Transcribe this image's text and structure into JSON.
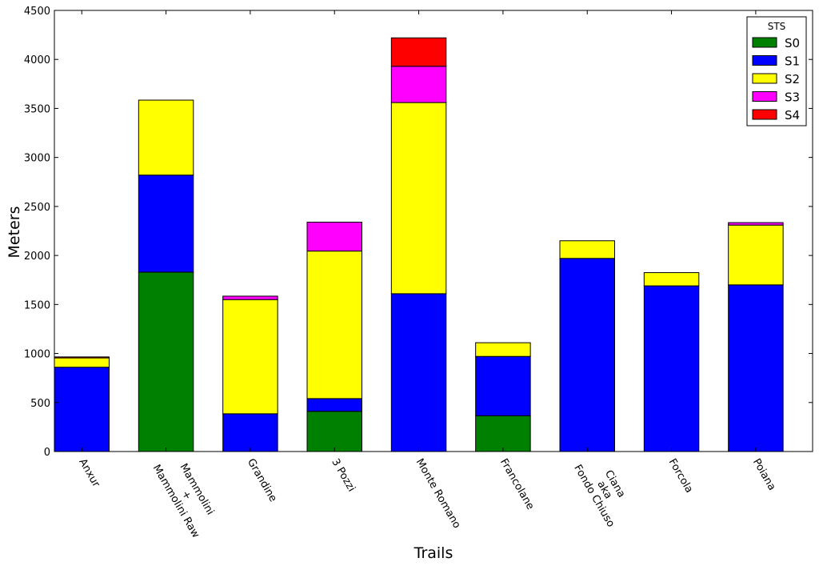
{
  "chart_data": {
    "type": "bar",
    "stacked": true,
    "xlabel": "Trails",
    "ylabel": "Meters",
    "ylim": [
      0,
      4500
    ],
    "yticks": [
      0,
      500,
      1000,
      1500,
      2000,
      2500,
      3000,
      3500,
      4000,
      4500
    ],
    "grid": false,
    "categories": [
      [
        "Anxur"
      ],
      [
        "Mammolini",
        "+",
        "Mammolini Raw"
      ],
      [
        "Grandine"
      ],
      [
        "3 Pozzi"
      ],
      [
        "Monte Romano"
      ],
      [
        "Francolane"
      ],
      [
        "Ciana",
        "aka",
        "Fondo Chiuso"
      ],
      [
        "Forcola"
      ],
      [
        "Poiana"
      ]
    ],
    "series": [
      {
        "name": "S0",
        "color": "#008000",
        "values": [
          0,
          1830,
          0,
          410,
          0,
          365,
          0,
          0,
          0
        ]
      },
      {
        "name": "S1",
        "color": "#0000ff",
        "values": [
          860,
          990,
          385,
          130,
          1610,
          605,
          1970,
          1690,
          1700
        ]
      },
      {
        "name": "S2",
        "color": "#ffff00",
        "values": [
          95,
          765,
          1165,
          1505,
          1950,
          140,
          180,
          135,
          610
        ]
      },
      {
        "name": "S3",
        "color": "#ff00ff",
        "values": [
          0,
          0,
          35,
          295,
          370,
          0,
          0,
          0,
          25
        ]
      },
      {
        "name": "S4",
        "color": "#ff0000",
        "values": [
          10,
          0,
          0,
          0,
          290,
          0,
          0,
          0,
          0
        ]
      }
    ],
    "legend": {
      "title": "STS",
      "position": "top-right"
    }
  }
}
